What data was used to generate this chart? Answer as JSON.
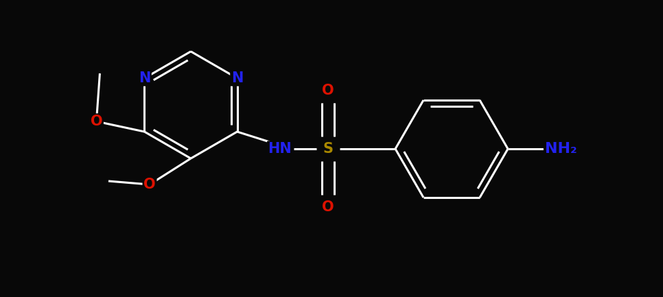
{
  "bg_color": "#080808",
  "bond_color": "#ffffff",
  "bond_width": 2.2,
  "atom_colors": {
    "N": "#2222ee",
    "O": "#dd1100",
    "S": "#aa8800",
    "C": "#ffffff",
    "H": "#ffffff"
  },
  "font_size": 15
}
